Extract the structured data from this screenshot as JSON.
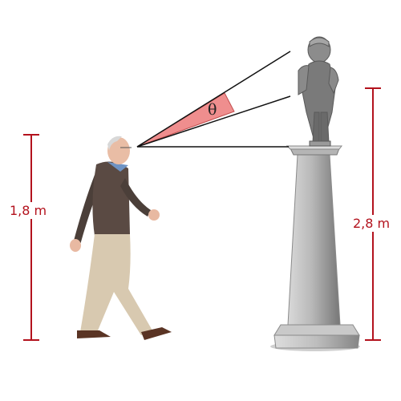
{
  "labels": {
    "person_height": "1,8 m",
    "statue_base_height": "2,8 m",
    "angle_symbol": "θ"
  },
  "colors": {
    "dimension_line": "#b3121d",
    "angle_fill": "#ef8e8e",
    "sight_line": "#111111"
  }
}
